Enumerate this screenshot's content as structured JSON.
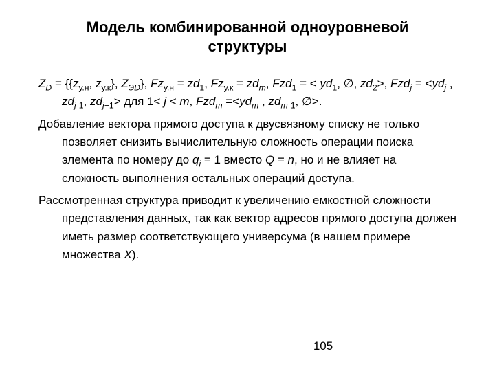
{
  "title_line1": "Модель комбинированной одноуровневой",
  "title_line2": "структуры",
  "p1_seg1": "Z",
  "p1_sub1": "D",
  "p1_seg2": " = {{",
  "p1_seg3": "z",
  "p1_sub2": "у.н",
  "p1_seg4": ", ",
  "p1_seg5": "z",
  "p1_sub3": "у.к",
  "p1_seg6": "}, ",
  "p1_seg7": "Z",
  "p1_sub4": "ЭD",
  "p1_seg8": "}, ",
  "p1_seg9": "Fz",
  "p1_sub5": "у.н",
  "p1_seg10": " = ",
  "p1_seg11": "zd",
  "p1_sub6": "1",
  "p1_seg12": ", ",
  "p1_seg13": "Fz",
  "p1_sub7": "у.к",
  "p1_seg14": " = ",
  "p1_seg15": "zd",
  "p1_sub8": "m",
  "p1_seg16": ", ",
  "p1_seg17": "Fzd",
  "p1_sub9": "1",
  "p1_seg18": " = < ",
  "p1_seg19": "yd",
  "p1_sub10": "1",
  "p1_seg20": ", ∅, ",
  "p1_seg21": "zd",
  "p1_sub11": "2",
  "p1_seg22": ">, ",
  "p1_seg23": "Fzd",
  "p1_sub12": "j",
  "p1_seg24": " = <",
  "p1_seg25": "yd",
  "p1_sub13": "j",
  "p1_seg26": " , ",
  "p1_seg27": "zd",
  "p1_sub14": "j-",
  "p1_sub14b": "1",
  "p1_seg28": ", ",
  "p1_seg29": "zd",
  "p1_sub15": "j+",
  "p1_sub15b": "1",
  "p1_seg30": "> для 1< ",
  "p1_seg31": "j",
  "p1_seg32": " < ",
  "p1_seg33": "m",
  "p1_seg34": ", ",
  "p1_seg35": "Fzd",
  "p1_sub16": "m",
  "p1_seg36": " =<",
  "p1_seg37": "yd",
  "p1_sub17": "m",
  "p1_seg38": " , ",
  "p1_seg39": "zd",
  "p1_sub18": "m-",
  "p1_sub18b": "1",
  "p1_seg40": ", ∅>.",
  "p2_a": "Добавление вектора прямого доступа к двусвязному списку не только позволяет снизить вычислительную сложность операции поиска элемента по номеру до ",
  "p2_q": "q",
  "p2_qi": "i",
  "p2_b": " = 1 вместо ",
  "p2_Q": "Q",
  "p2_c": " = ",
  "p2_n": "n",
  "p2_d": ", но и не влияет на сложность выполнения остальных операций доступа.",
  "p3_a": "Рассмотренная структура приводит к увеличению емкостной сложности представления данных, так как вектор адресов прямого доступа должен иметь размер соответствующего универсума (в нашем примере множества ",
  "p3_X": "X",
  "p3_b": ").",
  "pagenum": "105"
}
